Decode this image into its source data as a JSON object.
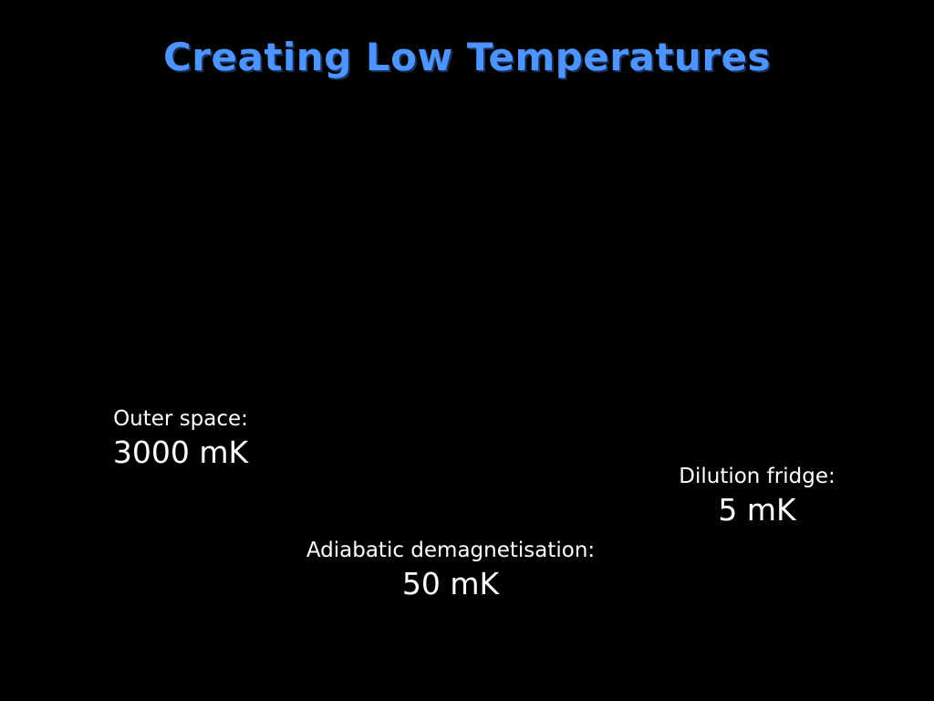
{
  "slide": {
    "title": "Creating Low Temperatures",
    "title_color": "#4d94ff",
    "background_color": "#000000",
    "text_color": "#ffffff"
  },
  "items": [
    {
      "label": "Outer space:",
      "value": "3000 mK"
    },
    {
      "label": "Adiabatic demagnetisation:",
      "value": "50 mK"
    },
    {
      "label": "Dilution fridge:",
      "value": "5 mK"
    }
  ]
}
